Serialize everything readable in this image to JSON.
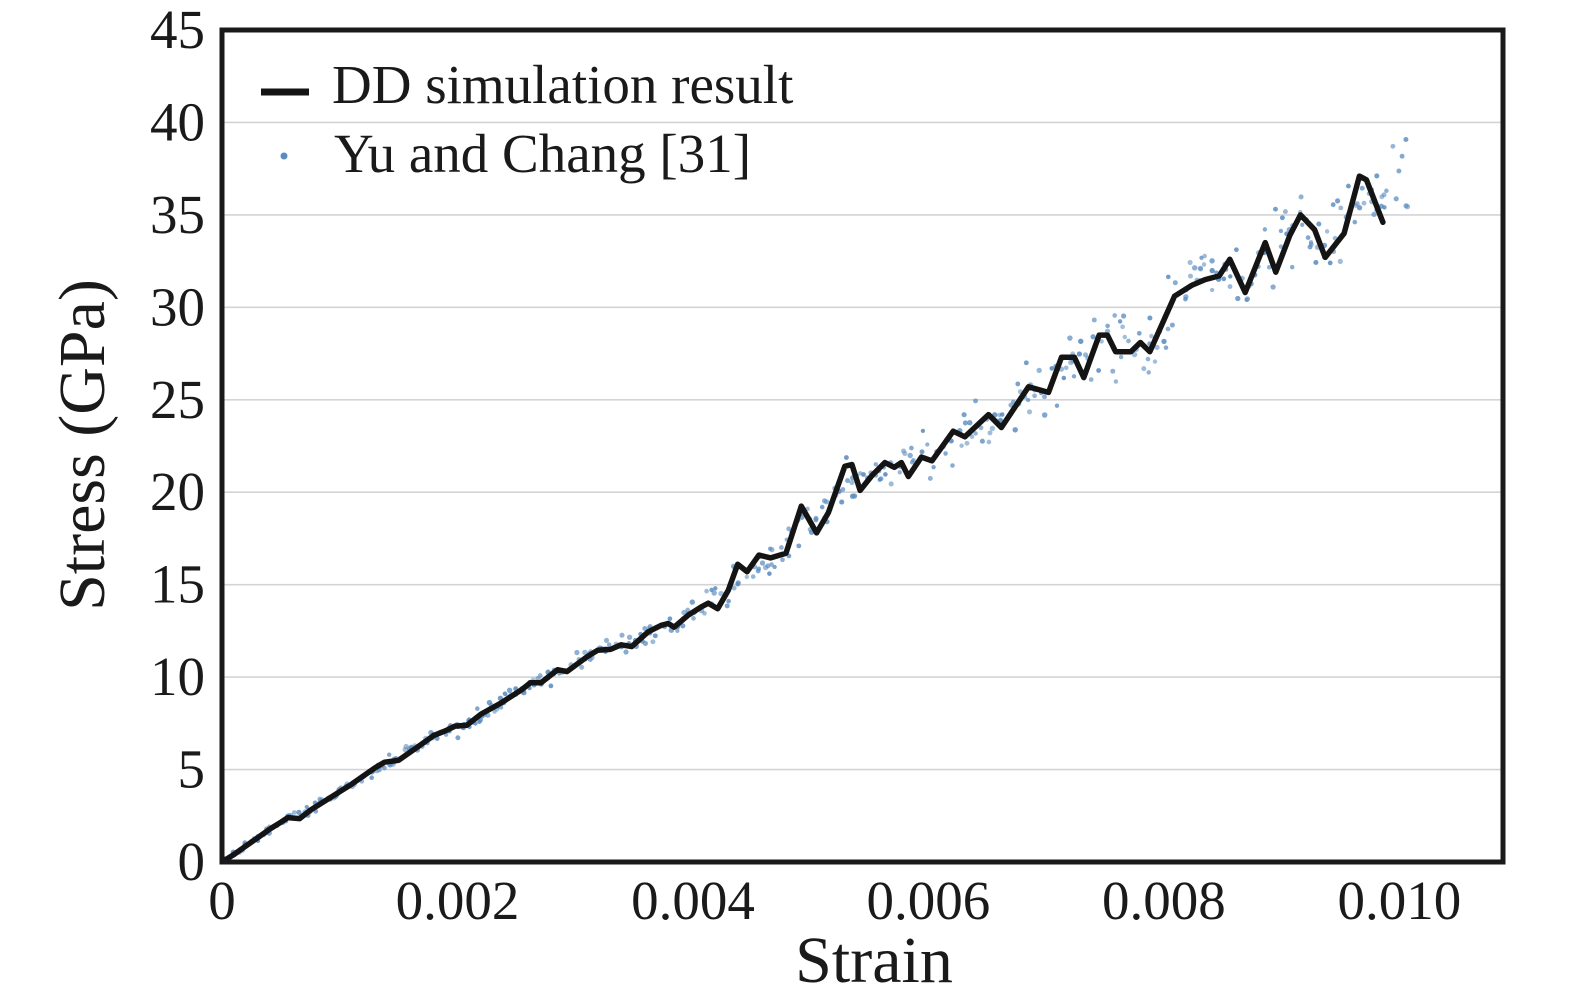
{
  "chart_data": {
    "type": "line+scatter",
    "title": "",
    "xlabel": "Strain",
    "ylabel": "Stress (GPa)",
    "xlim": [
      0,
      0.01088
    ],
    "ylim": [
      0,
      45
    ],
    "x_ticks": [
      0,
      0.002,
      0.004,
      0.006,
      0.008,
      0.01
    ],
    "x_tick_labels": [
      "0",
      "0.002",
      "0.004",
      "0.006",
      "0.008",
      "0.010"
    ],
    "y_ticks": [
      0,
      5,
      10,
      15,
      20,
      25,
      30,
      35,
      40,
      45
    ],
    "y_tick_labels": [
      "0",
      "5",
      "10",
      "15",
      "20",
      "25",
      "30",
      "35",
      "40",
      "45"
    ],
    "grid": {
      "horizontal": true,
      "vertical": false,
      "color": "#d4d4d4"
    },
    "frame_color": "#1a1a1a",
    "legend": {
      "position": "top-left",
      "entries": [
        {
          "label": "DD simulation result",
          "type": "line",
          "color": "#141414"
        },
        {
          "label": "Yu and Chang [31]",
          "type": "scatter",
          "color": "#5b8cc0"
        }
      ]
    },
    "series": [
      {
        "name": "DD simulation result",
        "type": "line",
        "color": "#141414",
        "stroke_width": 5.5,
        "strain_unit": 0.0001,
        "points": [
          [
            0,
            0
          ],
          [
            1,
            0.4
          ],
          [
            2,
            0.85
          ],
          [
            3,
            1.3
          ],
          [
            4,
            1.75
          ],
          [
            5,
            2.15
          ],
          [
            5.6,
            2.4
          ],
          [
            6.6,
            2.35
          ],
          [
            7.5,
            2.8
          ],
          [
            9,
            3.4
          ],
          [
            10,
            3.8
          ],
          [
            11,
            4.2
          ],
          [
            12,
            4.65
          ],
          [
            13,
            5.1
          ],
          [
            13.8,
            5.4
          ],
          [
            15,
            5.5
          ],
          [
            16,
            5.95
          ],
          [
            17,
            6.4
          ],
          [
            18,
            6.85
          ],
          [
            19,
            7.1
          ],
          [
            19.8,
            7.35
          ],
          [
            20.8,
            7.4
          ],
          [
            22,
            8.0
          ],
          [
            23.7,
            8.6
          ],
          [
            25.4,
            9.3
          ],
          [
            26.2,
            9.7
          ],
          [
            27.1,
            9.7
          ],
          [
            28.5,
            10.4
          ],
          [
            29.3,
            10.3
          ],
          [
            31,
            11.1
          ],
          [
            31.9,
            11.45
          ],
          [
            33,
            11.5
          ],
          [
            33.9,
            11.75
          ],
          [
            34.8,
            11.65
          ],
          [
            36.2,
            12.45
          ],
          [
            37.3,
            12.8
          ],
          [
            37.9,
            12.9
          ],
          [
            38.4,
            12.7
          ],
          [
            39.6,
            13.35
          ],
          [
            40.7,
            13.8
          ],
          [
            41.3,
            14.0
          ],
          [
            42.1,
            13.7
          ],
          [
            43,
            14.7
          ],
          [
            43.8,
            16.1
          ],
          [
            44.6,
            15.7
          ],
          [
            45.6,
            16.6
          ],
          [
            46.6,
            16.45
          ],
          [
            47.9,
            16.7
          ],
          [
            49.2,
            19.25
          ],
          [
            50.5,
            17.8
          ],
          [
            51.5,
            18.9
          ],
          [
            52.9,
            21.4
          ],
          [
            53.5,
            21.5
          ],
          [
            54.2,
            20.1
          ],
          [
            55.2,
            20.9
          ],
          [
            56.3,
            21.6
          ],
          [
            57.1,
            21.35
          ],
          [
            57.7,
            21.6
          ],
          [
            58.3,
            20.85
          ],
          [
            59.4,
            21.9
          ],
          [
            60.3,
            21.7
          ],
          [
            62.1,
            23.3
          ],
          [
            63.1,
            23.0
          ],
          [
            65.1,
            24.2
          ],
          [
            66.2,
            23.5
          ],
          [
            68.5,
            25.7
          ],
          [
            70.2,
            25.4
          ],
          [
            71.3,
            27.3
          ],
          [
            72.4,
            27.3
          ],
          [
            73.2,
            26.2
          ],
          [
            74.5,
            28.5
          ],
          [
            75.2,
            28.5
          ],
          [
            75.9,
            27.6
          ],
          [
            77.2,
            27.6
          ],
          [
            78,
            28.1
          ],
          [
            78.8,
            27.6
          ],
          [
            80.9,
            30.6
          ],
          [
            82.4,
            31.2
          ],
          [
            83.5,
            31.5
          ],
          [
            84.7,
            31.7
          ],
          [
            85.6,
            32.6
          ],
          [
            86.9,
            30.8
          ],
          [
            88.6,
            33.5
          ],
          [
            89.5,
            31.9
          ],
          [
            90.7,
            33.9
          ],
          [
            91.6,
            35.0
          ],
          [
            92.8,
            34.2
          ],
          [
            93.7,
            32.7
          ],
          [
            95.3,
            34.0
          ],
          [
            96.6,
            37.1
          ],
          [
            97.2,
            36.9
          ],
          [
            98.6,
            34.6
          ]
        ]
      },
      {
        "name": "Yu and Chang [31]",
        "type": "scatter",
        "color": "#5b8cc0",
        "marker_radius": 2.4,
        "strain_unit": 0.0001,
        "cloud": {
          "count": 520,
          "seed": 20,
          "u_min": 0.5,
          "u_max": 100.5,
          "column_step": 0.5,
          "x_jitter_sd": 0.18,
          "sd_base": 0.1,
          "sd_amp": 1.0,
          "sd_pow": 1.35,
          "wiggle_amp": 0.3,
          "wiggle_freq": 0.75,
          "wiggle_phase": 2.0,
          "extrapolation_slope": 1.2,
          "follows": "DD simulation result"
        }
      }
    ]
  }
}
